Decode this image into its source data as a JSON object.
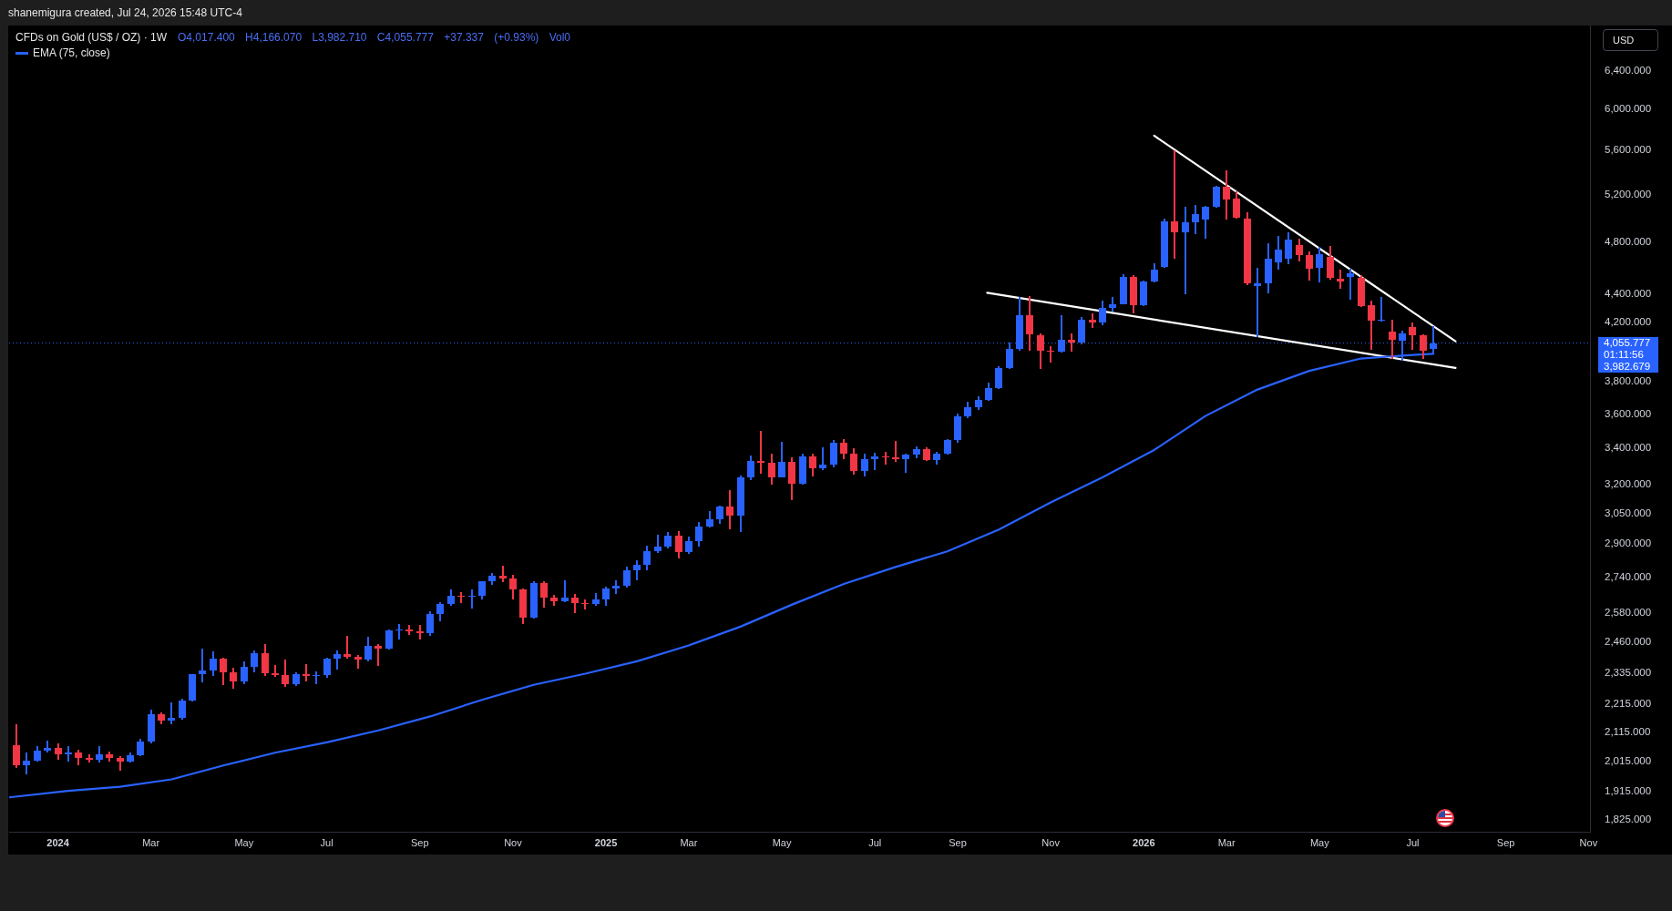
{
  "chart_data": {
    "type": "candlestick",
    "title": "CFDs on Gold (US$ / OZ) · 1W",
    "ylabel": "USD",
    "annotations": [
      "shanemigura created, Jul 24, 2026 15:48 UTC-4",
      "O4,017.400 H4,166.070 L3,982.710 C4,055.777 +37.337 (+0.93%) Vol0",
      "01:11:56",
      "3,982.679"
    ],
    "x": [
      "2023-12-04",
      "2023-12-11",
      "2023-12-18",
      "2023-12-25",
      "2024-01-01",
      "2024-01-08",
      "2024-01-15",
      "2024-01-22",
      "2024-01-29",
      "2024-02-05",
      "2024-02-12",
      "2024-02-19",
      "2024-02-26",
      "2024-03-04",
      "2024-03-11",
      "2024-03-18",
      "2024-03-25",
      "2024-04-01",
      "2024-04-08",
      "2024-04-15",
      "2024-04-22",
      "2024-04-29",
      "2024-05-06",
      "2024-05-13",
      "2024-05-20",
      "2024-05-27",
      "2024-06-03",
      "2024-06-10",
      "2024-06-17",
      "2024-06-24",
      "2024-07-01",
      "2024-07-08",
      "2024-07-15",
      "2024-07-22",
      "2024-07-29",
      "2024-08-05",
      "2024-08-12",
      "2024-08-19",
      "2024-08-26",
      "2024-09-02",
      "2024-09-09",
      "2024-09-16",
      "2024-09-23",
      "2024-09-30",
      "2024-10-07",
      "2024-10-14",
      "2024-10-21",
      "2024-10-28",
      "2024-11-04",
      "2024-11-11",
      "2024-11-18",
      "2024-11-25",
      "2024-12-02",
      "2024-12-09",
      "2024-12-16",
      "2024-12-23",
      "2024-12-30",
      "2025-01-06",
      "2025-01-13",
      "2025-01-20",
      "2025-01-27",
      "2025-02-03",
      "2025-02-10",
      "2025-02-17",
      "2025-02-24",
      "2025-03-03",
      "2025-03-10",
      "2025-03-17",
      "2025-03-24",
      "2025-03-31",
      "2025-04-07",
      "2025-04-14",
      "2025-04-21",
      "2025-04-28",
      "2025-05-05",
      "2025-05-12",
      "2025-05-19",
      "2025-05-26",
      "2025-06-02",
      "2025-06-09",
      "2025-06-16",
      "2025-06-23",
      "2025-06-30",
      "2025-07-07",
      "2025-07-14",
      "2025-07-21",
      "2025-07-28",
      "2025-08-04",
      "2025-08-11",
      "2025-08-18",
      "2025-08-25",
      "2025-09-01",
      "2025-09-08",
      "2025-09-15",
      "2025-09-22",
      "2025-09-29",
      "2025-10-06",
      "2025-10-13",
      "2025-10-20",
      "2025-10-27",
      "2025-11-03",
      "2025-11-10",
      "2025-11-17",
      "2025-11-24",
      "2025-12-01",
      "2025-12-08",
      "2025-12-15",
      "2025-12-22",
      "2025-12-29",
      "2026-01-05",
      "2026-01-12",
      "2026-01-19",
      "2026-01-26",
      "2026-02-02",
      "2026-02-09",
      "2026-02-16",
      "2026-02-23",
      "2026-03-02",
      "2026-03-09",
      "2026-03-16",
      "2026-03-23",
      "2026-03-30",
      "2026-04-06",
      "2026-04-13",
      "2026-04-20",
      "2026-04-27",
      "2026-05-04",
      "2026-05-11",
      "2026-05-18",
      "2026-05-25",
      "2026-06-01",
      "2026-06-08",
      "2026-06-15",
      "2026-06-22",
      "2026-06-29",
      "2026-07-06",
      "2026-07-13",
      "2026-07-20"
    ],
    "ohlc": [
      [
        2070,
        2140,
        1992,
        2000
      ],
      [
        2000,
        2043,
        1971,
        2016
      ],
      [
        2016,
        2063,
        2013,
        2050
      ],
      [
        2050,
        2082,
        2045,
        2060
      ],
      [
        2060,
        2073,
        2021,
        2037
      ],
      [
        2037,
        2063,
        2013,
        2043
      ],
      [
        2045,
        2052,
        2002,
        2025
      ],
      [
        2025,
        2036,
        2010,
        2018
      ],
      [
        2018,
        2065,
        2011,
        2039
      ],
      [
        2039,
        2044,
        2014,
        2024
      ],
      [
        2024,
        2031,
        1984,
        2013
      ],
      [
        2013,
        2041,
        2010,
        2035
      ],
      [
        2035,
        2088,
        2032,
        2083
      ],
      [
        2083,
        2195,
        2078,
        2179
      ],
      [
        2179,
        2184,
        2146,
        2155
      ],
      [
        2155,
        2222,
        2146,
        2165
      ],
      [
        2165,
        2233,
        2160,
        2230
      ],
      [
        2230,
        2330,
        2228,
        2329
      ],
      [
        2329,
        2431,
        2300,
        2344
      ],
      [
        2344,
        2418,
        2324,
        2392
      ],
      [
        2392,
        2395,
        2291,
        2337
      ],
      [
        2337,
        2353,
        2277,
        2301
      ],
      [
        2301,
        2378,
        2292,
        2360
      ],
      [
        2360,
        2422,
        2340,
        2415
      ],
      [
        2415,
        2450,
        2325,
        2334
      ],
      [
        2334,
        2364,
        2320,
        2327
      ],
      [
        2327,
        2387,
        2283,
        2293
      ],
      [
        2293,
        2335,
        2286,
        2332
      ],
      [
        2332,
        2368,
        2303,
        2322
      ],
      [
        2322,
        2340,
        2293,
        2326
      ],
      [
        2326,
        2392,
        2319,
        2392
      ],
      [
        2392,
        2424,
        2351,
        2411
      ],
      [
        2411,
        2484,
        2393,
        2400
      ],
      [
        2400,
        2403,
        2353,
        2387
      ],
      [
        2387,
        2477,
        2382,
        2443
      ],
      [
        2443,
        2450,
        2364,
        2431
      ],
      [
        2431,
        2509,
        2430,
        2507
      ],
      [
        2507,
        2531,
        2470,
        2512
      ],
      [
        2512,
        2528,
        2491,
        2503
      ],
      [
        2503,
        2529,
        2472,
        2497
      ],
      [
        2497,
        2586,
        2485,
        2578
      ],
      [
        2578,
        2625,
        2547,
        2622
      ],
      [
        2622,
        2685,
        2615,
        2658
      ],
      [
        2658,
        2670,
        2625,
        2653
      ],
      [
        2653,
        2685,
        2604,
        2657
      ],
      [
        2657,
        2722,
        2643,
        2721
      ],
      [
        2721,
        2758,
        2708,
        2747
      ],
      [
        2747,
        2790,
        2722,
        2736
      ],
      [
        2736,
        2750,
        2643,
        2684
      ],
      [
        2684,
        2686,
        2536,
        2562
      ],
      [
        2562,
        2721,
        2558,
        2715
      ],
      [
        2715,
        2722,
        2605,
        2650
      ],
      [
        2650,
        2658,
        2614,
        2633
      ],
      [
        2633,
        2726,
        2631,
        2648
      ],
      [
        2648,
        2664,
        2583,
        2623
      ],
      [
        2623,
        2639,
        2600,
        2621
      ],
      [
        2621,
        2665,
        2614,
        2640
      ],
      [
        2640,
        2697,
        2614,
        2690
      ],
      [
        2690,
        2726,
        2665,
        2702
      ],
      [
        2702,
        2786,
        2696,
        2771
      ],
      [
        2771,
        2817,
        2730,
        2800
      ],
      [
        2800,
        2886,
        2773,
        2861
      ],
      [
        2861,
        2942,
        2857,
        2883
      ],
      [
        2883,
        2955,
        2879,
        2936
      ],
      [
        2936,
        2956,
        2832,
        2858
      ],
      [
        2858,
        2930,
        2853,
        2910
      ],
      [
        2910,
        3005,
        2889,
        2984
      ],
      [
        2984,
        3057,
        2982,
        3022
      ],
      [
        3022,
        3086,
        3000,
        3084
      ],
      [
        3084,
        3168,
        2971,
        3037
      ],
      [
        3037,
        3245,
        2957,
        3238
      ],
      [
        3238,
        3357,
        3227,
        3327
      ],
      [
        3327,
        3500,
        3260,
        3319
      ],
      [
        3319,
        3368,
        3202,
        3240
      ],
      [
        3240,
        3435,
        3240,
        3325
      ],
      [
        3325,
        3345,
        3121,
        3204
      ],
      [
        3204,
        3366,
        3204,
        3357
      ],
      [
        3357,
        3365,
        3245,
        3289
      ],
      [
        3289,
        3403,
        3280,
        3310
      ],
      [
        3310,
        3446,
        3295,
        3432
      ],
      [
        3432,
        3452,
        3340,
        3368
      ],
      [
        3368,
        3398,
        3255,
        3274
      ],
      [
        3274,
        3365,
        3247,
        3337
      ],
      [
        3337,
        3374,
        3283,
        3355
      ],
      [
        3355,
        3377,
        3310,
        3350
      ],
      [
        3350,
        3439,
        3325,
        3337
      ],
      [
        3337,
        3365,
        3268,
        3363
      ],
      [
        3363,
        3409,
        3349,
        3398
      ],
      [
        3398,
        3404,
        3331,
        3336
      ],
      [
        3336,
        3379,
        3311,
        3372
      ],
      [
        3372,
        3453,
        3365,
        3447
      ],
      [
        3447,
        3599,
        3436,
        3586
      ],
      [
        3586,
        3674,
        3578,
        3643
      ],
      [
        3643,
        3707,
        3627,
        3685
      ],
      [
        3685,
        3791,
        3683,
        3760
      ],
      [
        3760,
        3897,
        3758,
        3887
      ],
      [
        3887,
        4059,
        3885,
        4018
      ],
      [
        4018,
        4379,
        4005,
        4251
      ],
      [
        4251,
        4381,
        4004,
        4113
      ],
      [
        4110,
        4120,
        3886,
        4002
      ],
      [
        4002,
        4030,
        3930,
        3998
      ],
      [
        3998,
        4245,
        3995,
        4080
      ],
      [
        4080,
        4120,
        3998,
        4060
      ],
      [
        4060,
        4230,
        4050,
        4218
      ],
      [
        4218,
        4260,
        4160,
        4200
      ],
      [
        4200,
        4353,
        4180,
        4300
      ],
      [
        4300,
        4374,
        4280,
        4330
      ],
      [
        4330,
        4545,
        4328,
        4528
      ],
      [
        4528,
        4540,
        4268,
        4320
      ],
      [
        4320,
        4500,
        4315,
        4496
      ],
      [
        4496,
        4632,
        4490,
        4589
      ],
      [
        4610,
        4990,
        4600,
        4974
      ],
      [
        4974,
        5593,
        4674,
        4878
      ],
      [
        4878,
        5089,
        4401,
        4961
      ],
      [
        4961,
        5107,
        4873,
        5030
      ],
      [
        4985,
        5100,
        4836,
        5097
      ],
      [
        5097,
        5270,
        5090,
        5267
      ],
      [
        5267,
        5411,
        4994,
        5160
      ],
      [
        5165,
        5221,
        4995,
        5005
      ],
      [
        4995,
        5043,
        4475,
        4480
      ],
      [
        4460,
        4596,
        4102,
        4485
      ],
      [
        4485,
        4787,
        4412,
        4667
      ],
      [
        4640,
        4849,
        4589,
        4739
      ],
      [
        4671,
        4878,
        4632,
        4824
      ],
      [
        4780,
        4829,
        4655,
        4698
      ],
      [
        4698,
        4727,
        4503,
        4596
      ],
      [
        4598,
        4758,
        4491,
        4703
      ],
      [
        4683,
        4770,
        4510,
        4526
      ],
      [
        4519,
        4580,
        4446,
        4496
      ],
      [
        4531,
        4589,
        4361,
        4561
      ],
      [
        4526,
        4538,
        4312,
        4316
      ],
      [
        4322,
        4352,
        4015,
        4208
      ],
      [
        4208,
        4378,
        4206,
        4214
      ],
      [
        4134,
        4214,
        3951,
        4077
      ],
      [
        4073,
        4138,
        3939,
        4119
      ],
      [
        4165,
        4193,
        4015,
        4106
      ],
      [
        4106,
        4110,
        3954,
        4005
      ],
      [
        4017.4,
        4166.07,
        3982.71,
        4055.777
      ]
    ],
    "colors": [
      "#f23645",
      "#2962ff",
      "#2962ff",
      "#2962ff",
      "#f23645",
      "#2962ff",
      "#f23645",
      "#f23645",
      "#2962ff",
      "#f23645",
      "#f23645",
      "#2962ff",
      "#2962ff",
      "#2962ff",
      "#f23645",
      "#2962ff",
      "#2962ff",
      "#2962ff",
      "#2962ff",
      "#2962ff",
      "#f23645",
      "#f23645",
      "#2962ff",
      "#2962ff",
      "#f23645",
      "#f23645",
      "#f23645",
      "#2962ff",
      "#f23645",
      "#2962ff",
      "#2962ff",
      "#2962ff",
      "#f23645",
      "#f23645",
      "#2962ff",
      "#f23645",
      "#2962ff",
      "#2962ff",
      "#f23645",
      "#f23645",
      "#2962ff",
      "#2962ff",
      "#2962ff",
      "#f23645",
      "#2962ff",
      "#2962ff",
      "#2962ff",
      "#f23645",
      "#f23645",
      "#f23645",
      "#2962ff",
      "#f23645",
      "#f23645",
      "#2962ff",
      "#f23645",
      "#f23645",
      "#2962ff",
      "#2962ff",
      "#2962ff",
      "#2962ff",
      "#2962ff",
      "#2962ff",
      "#2962ff",
      "#2962ff",
      "#f23645",
      "#2962ff",
      "#2962ff",
      "#2962ff",
      "#2962ff",
      "#f23645",
      "#2962ff",
      "#2962ff",
      "#f23645",
      "#f23645",
      "#2962ff",
      "#f23645",
      "#2962ff",
      "#f23645",
      "#2962ff",
      "#2962ff",
      "#f23645",
      "#f23645",
      "#2962ff",
      "#2962ff",
      "#f23645",
      "#f23645",
      "#2962ff",
      "#2962ff",
      "#f23645",
      "#2962ff",
      "#2962ff",
      "#2962ff",
      "#2962ff",
      "#2962ff",
      "#2962ff",
      "#2962ff",
      "#2962ff",
      "#2962ff",
      "#f23645",
      "#f23645",
      "#f23645",
      "#2962ff",
      "#f23645",
      "#2962ff",
      "#f23645",
      "#2962ff",
      "#2962ff",
      "#2962ff",
      "#f23645",
      "#2962ff",
      "#2962ff",
      "#2962ff",
      "#f23645",
      "#2962ff",
      "#2962ff",
      "#2962ff",
      "#2962ff",
      "#f23645",
      "#f23645",
      "#f23645",
      "#2962ff",
      "#2962ff",
      "#2962ff",
      "#2962ff",
      "#f23645",
      "#f23645",
      "#2962ff",
      "#f23645",
      "#f23645",
      "#2962ff",
      "#f23645",
      "#f23645",
      "#2962ff",
      "#f23645",
      "#2962ff",
      "#f23645",
      "#f23645",
      "#2962ff"
    ],
    "series": [
      {
        "type": "line",
        "name": "EMA (75, close)",
        "color": "#2962ff",
        "x": [
          "2023-11-29",
          "2024-01-08",
          "2024-02-12",
          "2024-03-18",
          "2024-04-22",
          "2024-05-27",
          "2024-07-01",
          "2024-08-05",
          "2024-09-09",
          "2024-10-14",
          "2024-11-18",
          "2024-12-23",
          "2025-01-27",
          "2025-03-03",
          "2025-04-07",
          "2025-05-12",
          "2025-06-16",
          "2025-07-21",
          "2025-08-25",
          "2025-09-29",
          "2025-11-03",
          "2025-12-08",
          "2026-01-12",
          "2026-02-16",
          "2026-03-23",
          "2026-04-27",
          "2026-06-01",
          "2026-07-06",
          "2026-07-20"
        ],
        "values": [
          1896,
          1917,
          1930,
          1954,
          2000,
          2043,
          2079,
          2121,
          2171,
          2232,
          2289,
          2332,
          2381,
          2445,
          2523,
          2618,
          2710,
          2788,
          2862,
          2968,
          3106,
          3239,
          3391,
          3591,
          3752,
          3871,
          3952,
          3976,
          3982.679
        ]
      },
      {
        "type": "line",
        "color": "#ffffff",
        "x": [
          "2026-01-12",
          "2026-08-04"
        ],
        "values": [
          5738,
          4068
        ]
      },
      {
        "type": "line",
        "color": "#ffffff",
        "x": [
          "2025-09-21",
          "2026-08-04"
        ],
        "values": [
          4412,
          3890
        ]
      }
    ],
    "ref_lines": [
      {
        "axis": "y",
        "value": 4055.777,
        "label": "4,055.777",
        "color": "#2962ff",
        "line_style": "dotted"
      }
    ],
    "xlim": [
      "2023-11-29",
      "2026-11-03"
    ],
    "xticks": [
      {
        "value": "2024-01-01",
        "label": "2024"
      },
      {
        "value": "2024-03-04",
        "label": "Mar"
      },
      {
        "value": "2024-05-06",
        "label": "May"
      },
      {
        "value": "2024-07-01",
        "label": "Jul"
      },
      {
        "value": "2024-09-02",
        "label": "Sep"
      },
      {
        "value": "2024-11-04",
        "label": "Nov"
      },
      {
        "value": "2025-01-06",
        "label": "2025"
      },
      {
        "value": "2025-03-03",
        "label": "Mar"
      },
      {
        "value": "2025-05-05",
        "label": "May"
      },
      {
        "value": "2025-07-07",
        "label": "Jul"
      },
      {
        "value": "2025-09-01",
        "label": "Sep"
      },
      {
        "value": "2025-11-03",
        "label": "Nov"
      },
      {
        "value": "2026-01-05",
        "label": "2026"
      },
      {
        "value": "2026-03-02",
        "label": "Mar"
      },
      {
        "value": "2026-05-04",
        "label": "May"
      },
      {
        "value": "2026-07-06",
        "label": "Jul"
      },
      {
        "value": "2026-09-07",
        "label": "Sep"
      },
      {
        "value": "2026-11-02",
        "label": "Nov"
      }
    ],
    "ylim": [
      1790,
      6900
    ],
    "yticks": [
      {
        "value": 1825,
        "label": "1,825.000"
      },
      {
        "value": 1915,
        "label": "1,915.000"
      },
      {
        "value": 2015,
        "label": "2,015.000"
      },
      {
        "value": 2115,
        "label": "2,115.000"
      },
      {
        "value": 2215,
        "label": "2,215.000"
      },
      {
        "value": 2335,
        "label": "2,335.000"
      },
      {
        "value": 2460,
        "label": "2,460.000"
      },
      {
        "value": 2580,
        "label": "2,580.000"
      },
      {
        "value": 2740,
        "label": "2,740.000"
      },
      {
        "value": 2900,
        "label": "2,900.000"
      },
      {
        "value": 3050,
        "label": "3,050.000"
      },
      {
        "value": 3200,
        "label": "3,200.000"
      },
      {
        "value": 3400,
        "label": "3,400.000"
      },
      {
        "value": 3600,
        "label": "3,600.000"
      },
      {
        "value": 3800,
        "label": "3,800.000"
      },
      {
        "value": 4200,
        "label": "4,200.000"
      },
      {
        "value": 4400,
        "label": "4,400.000"
      },
      {
        "value": 4800,
        "label": "4,800.000"
      },
      {
        "value": 5200,
        "label": "5,200.000"
      },
      {
        "value": 5600,
        "label": "5,600.000"
      },
      {
        "value": 6000,
        "label": "6,000.000"
      },
      {
        "value": 6400,
        "label": "6,400.000"
      }
    ],
    "log": true,
    "legend": "top left"
  }
}
